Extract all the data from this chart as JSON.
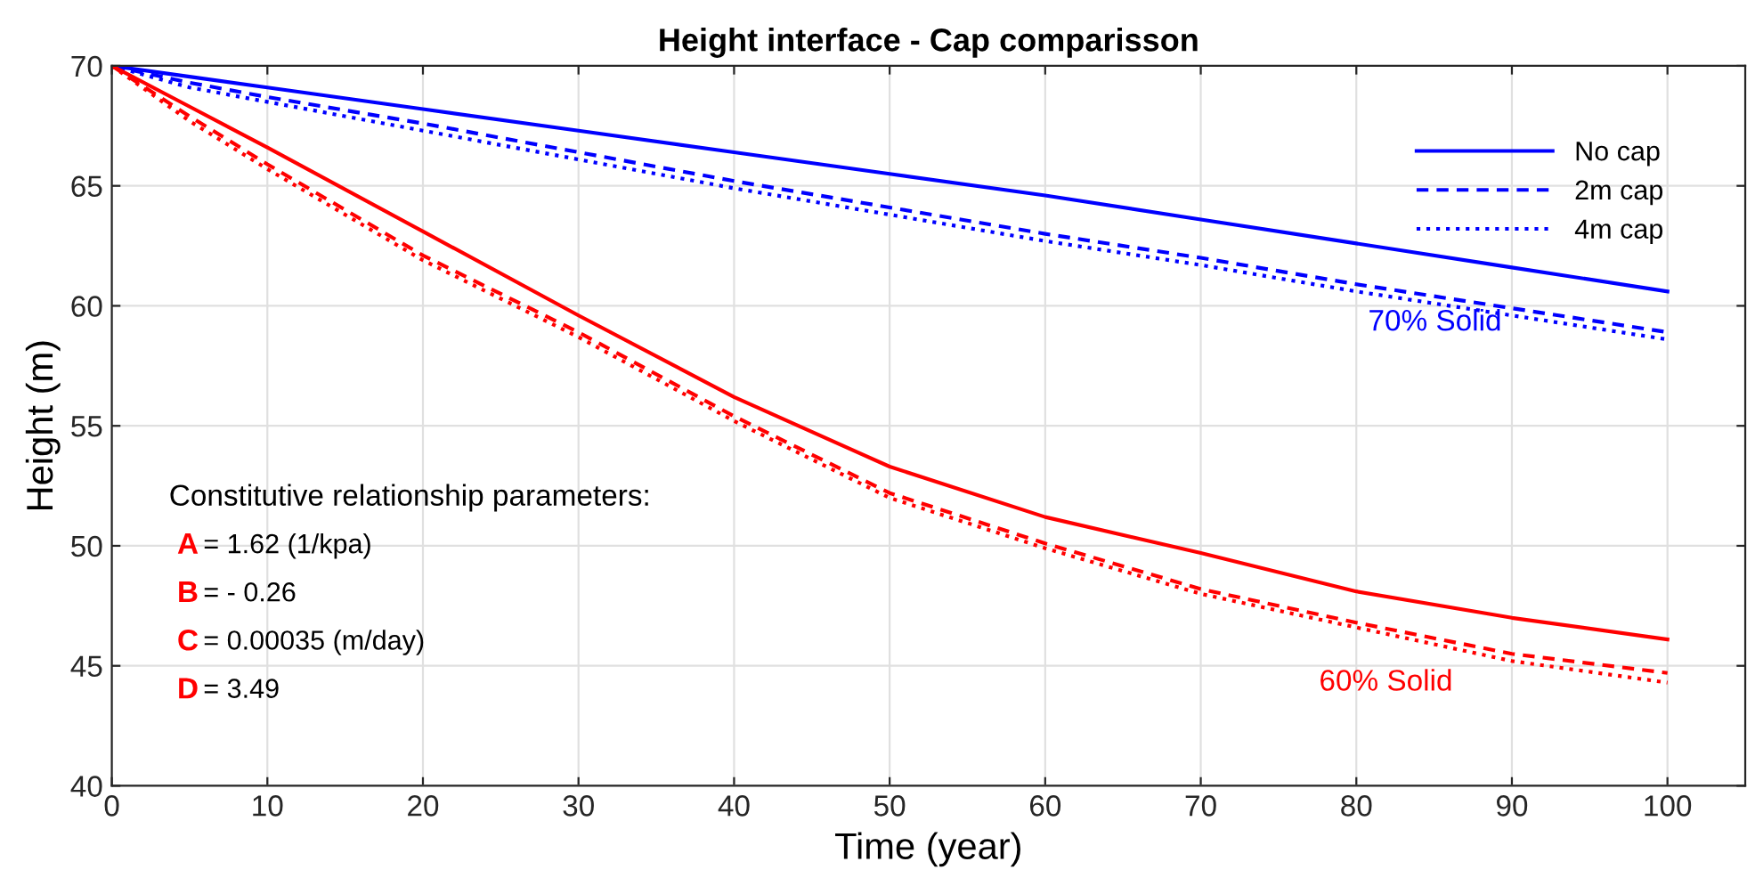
{
  "chart_data": {
    "type": "line",
    "title": "Height interface - Cap comparisson",
    "xlabel": "Time (year)",
    "ylabel": "Height (m)",
    "x": [
      0,
      5,
      10,
      20,
      30,
      40,
      50,
      60,
      70,
      80,
      90,
      100
    ],
    "series": [
      {
        "name": "No cap",
        "color": "#0000ff",
        "line_style": "solid",
        "values": [
          70,
          69.55,
          69.1,
          68.2,
          67.3,
          66.4,
          65.5,
          64.6,
          63.6,
          62.6,
          61.6,
          60.6
        ]
      },
      {
        "name": "2m cap",
        "color": "#0000ff",
        "line_style": "dashed",
        "values": [
          70,
          69.3,
          68.7,
          67.6,
          66.4,
          65.2,
          64.1,
          63.0,
          62.0,
          60.9,
          59.9,
          58.9
        ]
      },
      {
        "name": "4m cap",
        "color": "#0000ff",
        "line_style": "dotted",
        "values": [
          70,
          69.1,
          68.5,
          67.3,
          66.1,
          64.9,
          63.8,
          62.7,
          61.7,
          60.6,
          59.6,
          58.6
        ]
      },
      {
        "color": "#ff0000",
        "line_style": "solid",
        "values": [
          70,
          68.3,
          66.6,
          63.1,
          59.6,
          56.2,
          53.3,
          51.2,
          49.7,
          48.1,
          47.0,
          46.1
        ]
      },
      {
        "color": "#ff0000",
        "line_style": "dashed",
        "values": [
          70,
          67.9,
          65.9,
          62.1,
          58.9,
          55.4,
          52.2,
          50.1,
          48.2,
          46.8,
          45.5,
          44.7
        ]
      },
      {
        "color": "#ff0000",
        "line_style": "dotted",
        "values": [
          70,
          67.7,
          65.7,
          61.9,
          58.7,
          55.2,
          52.0,
          49.9,
          48.0,
          46.6,
          45.2,
          44.3
        ]
      }
    ],
    "xlim": [
      0,
      105
    ],
    "xticks": [
      0,
      10,
      20,
      30,
      40,
      50,
      60,
      70,
      80,
      90,
      100
    ],
    "ylim": [
      40,
      70
    ],
    "yticks": [
      40,
      45,
      50,
      55,
      60,
      65,
      70
    ],
    "grid": true,
    "legend": "top right",
    "marker": "none",
    "annotations": [
      "70% Solid",
      "60% Solid",
      "Constitutive relationship parameters:",
      "A = 1.62 (1/kpa)",
      "B = - 0.26",
      "C = 0.00035 (m/day)",
      "D = 3.49"
    ]
  }
}
